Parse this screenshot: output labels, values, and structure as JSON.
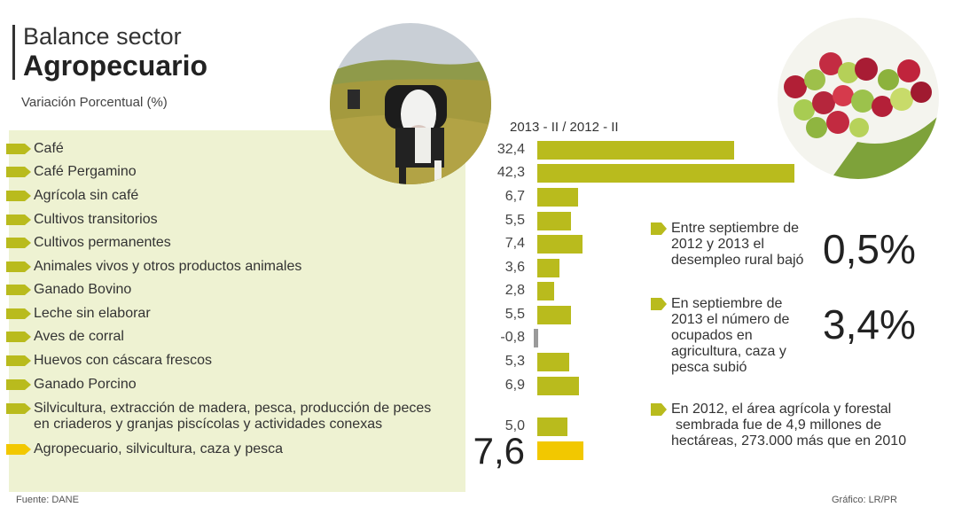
{
  "header": {
    "title_line1": "Balance sector",
    "title_line2": "Agropecuario",
    "subtitle": "Variación Porcentual (%)",
    "period": "2013 - II / 2012 - II"
  },
  "chart_data": {
    "type": "bar",
    "orientation": "horizontal",
    "title": "Balance sector Agropecuario",
    "subtitle": "Variación Porcentual (%)",
    "series_label": "2013 - II / 2012 - II",
    "categories": [
      "Café",
      "Café Pergamino",
      "Agrícola sin café",
      "Cultivos transitorios",
      "Cultivos permanentes",
      "Animales vivos y otros productos animales",
      "Ganado Bovino",
      "Leche sin elaborar",
      "Aves de corral",
      "Huevos con cáscara frescos",
      "Ganado Porcino",
      "Silvicultura, extracción de madera, pesca, producción de peces|en criaderos y granjas piscícolas y actividades conexas",
      "Agropecuario, silvicultura, caza y pesca"
    ],
    "values": [
      32.4,
      42.3,
      6.7,
      5.5,
      7.4,
      3.6,
      2.8,
      5.5,
      -0.8,
      5.3,
      6.9,
      5.0,
      7.6
    ],
    "value_labels": [
      "32,4",
      "42,3",
      "6,7",
      "5,5",
      "7,4",
      "3,6",
      "2,8",
      "5,5",
      "-0,8",
      "5,3",
      "6,9",
      "5,0",
      "7,6"
    ],
    "highlight_index": 12
  },
  "stats": [
    {
      "text": [
        "Entre septiembre de",
        "2012 y 2013 el",
        "desempleo rural bajó"
      ],
      "value": "0,5%"
    },
    {
      "text": [
        "En septiembre de",
        "2013 el número de",
        "ocupados en",
        "agricultura, caza y",
        "pesca subió"
      ],
      "value": "3,4%"
    },
    {
      "text": [
        "En 2012, el área agrícola y forestal",
        "sembrada fue de 4,9 millones de",
        "hectáreas, 273.000 más que en 2010"
      ],
      "value": ""
    }
  ],
  "footer": {
    "source": "Fuente: DANE",
    "credit": "Gráfico: LR/PR"
  },
  "colors": {
    "bar": "#b9bb1d",
    "highlight_bar": "#f2c800",
    "negative_bar": "#9a9a9a",
    "panel": "#eef2d2",
    "arrow": "#b9bb1d",
    "highlight_arrow": "#f2c800"
  },
  "images": [
    "cow-photo",
    "coffee-cherries-photo"
  ]
}
